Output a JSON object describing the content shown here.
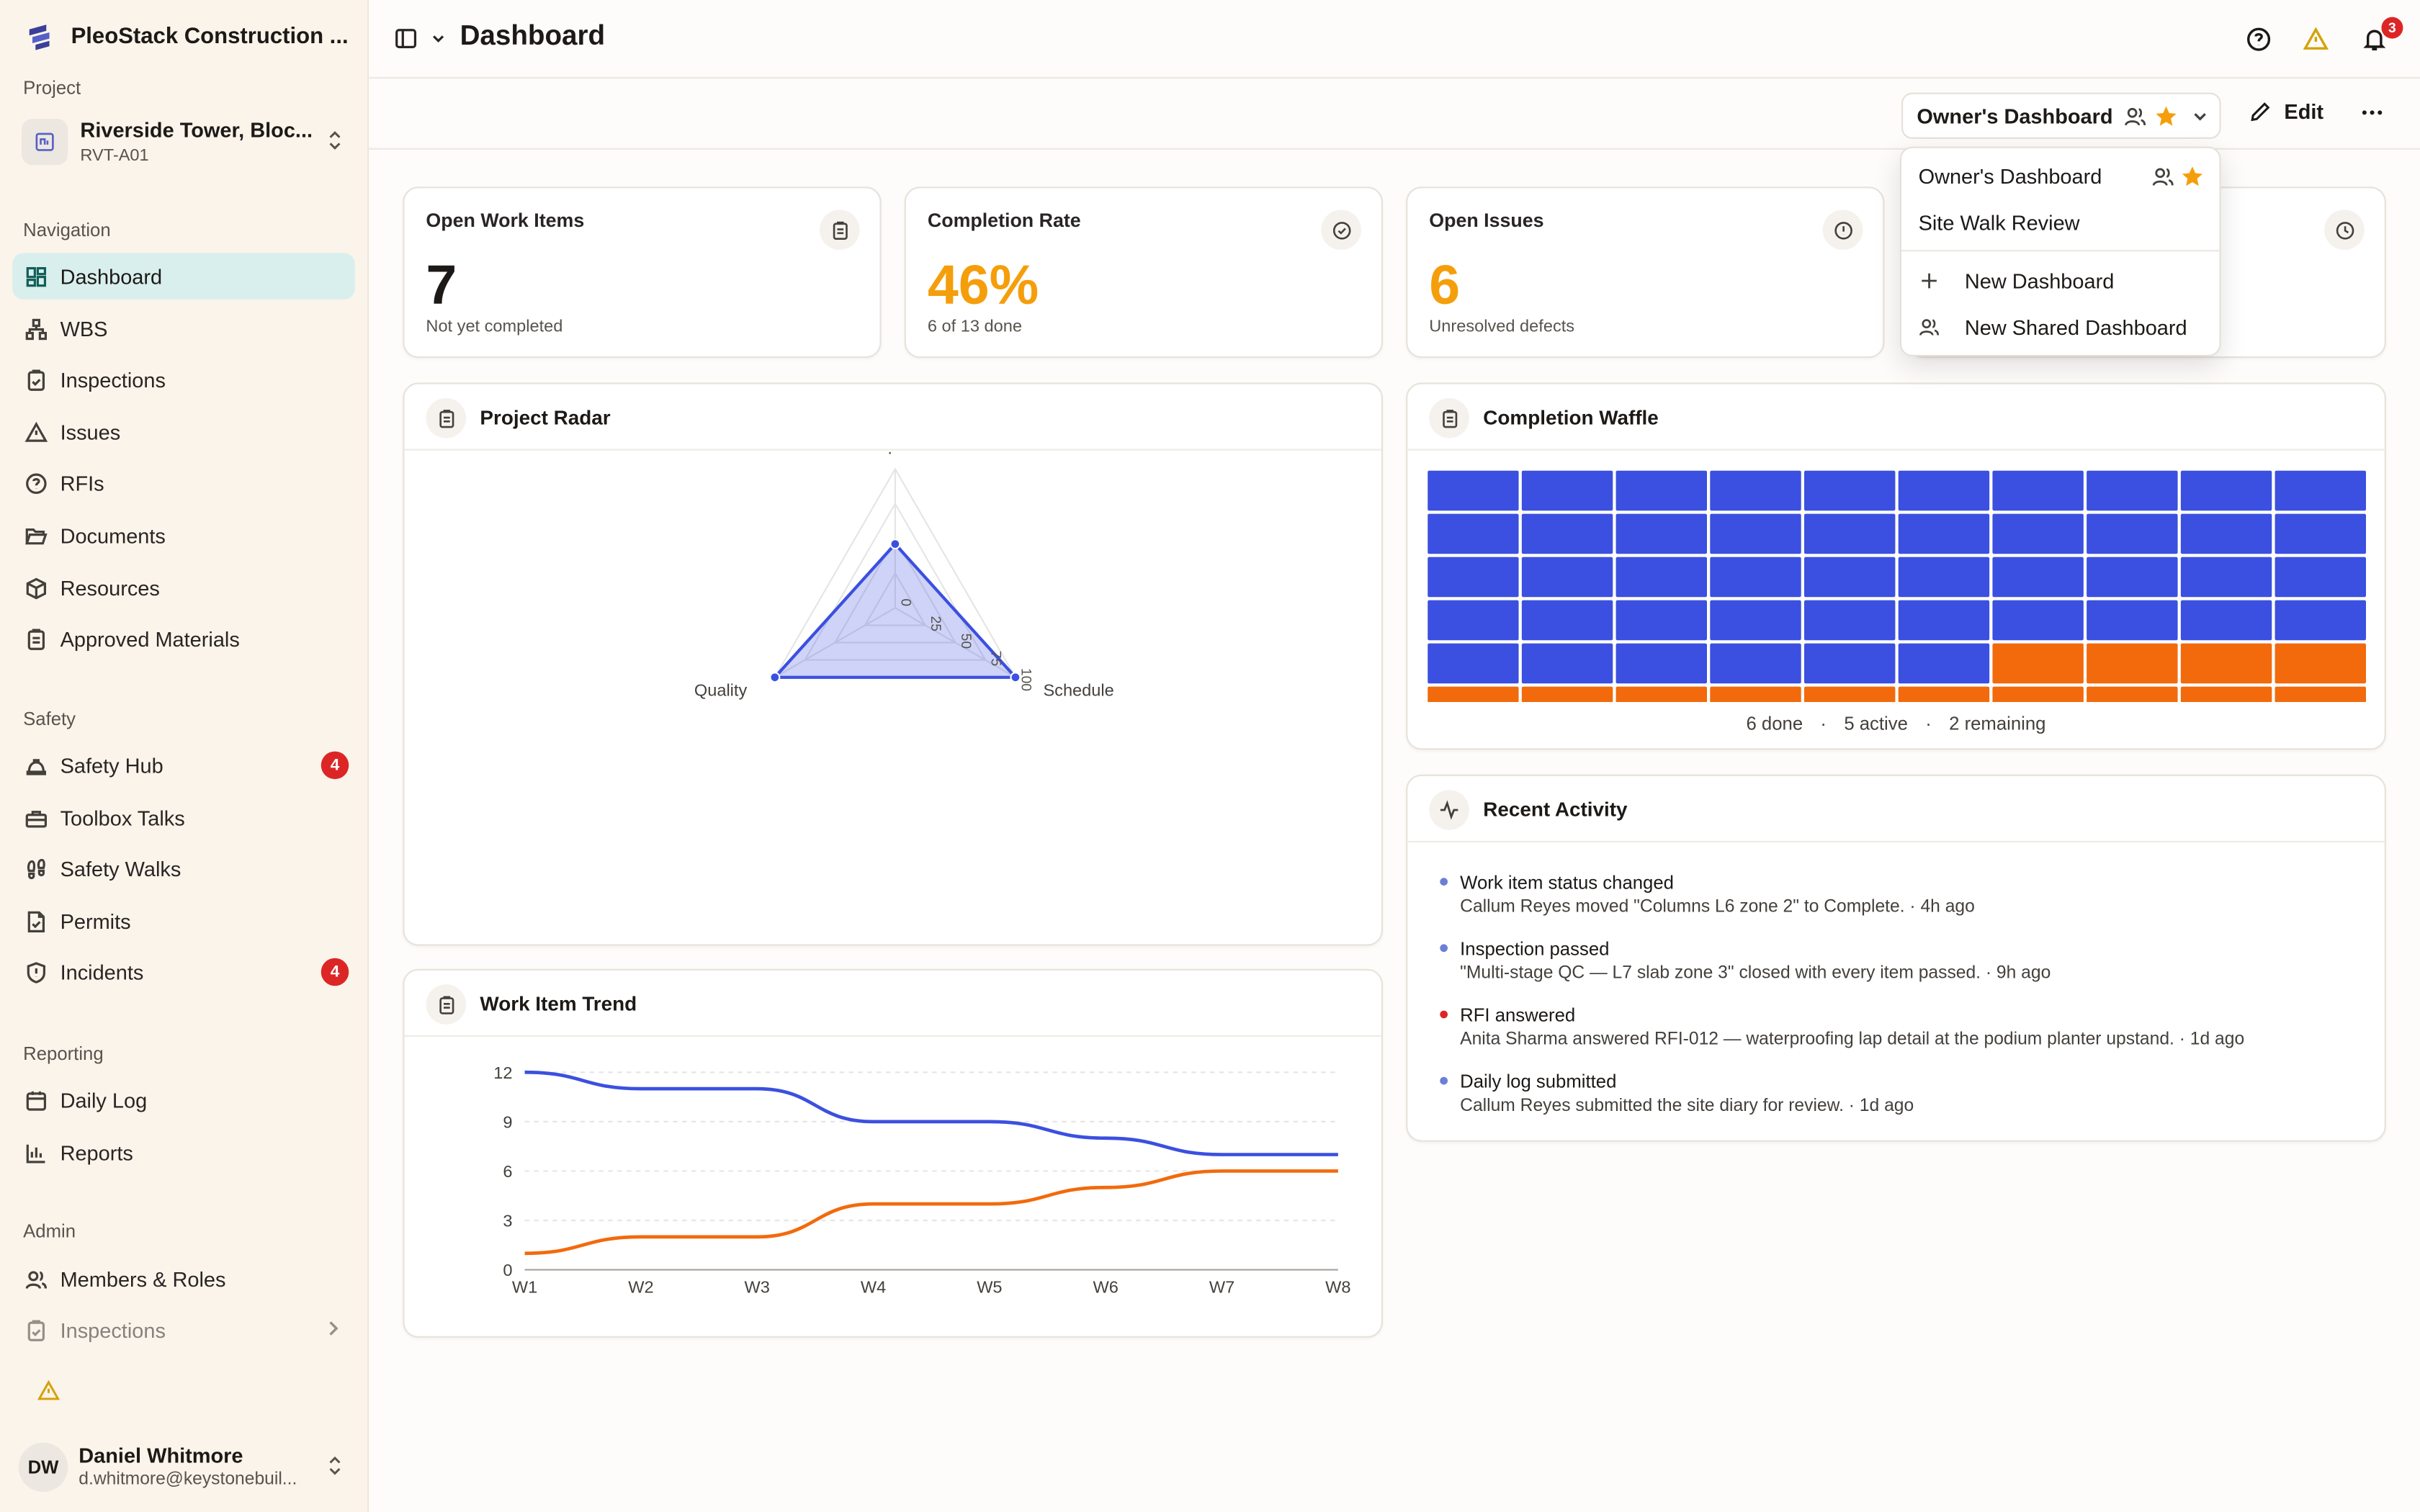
{
  "app": {
    "name": "PleoStack Construction ..."
  },
  "project": {
    "section_label": "Project",
    "name": "Riverside Tower, Bloc...",
    "code": "RVT-A01"
  },
  "sidebar": {
    "nav_label": "Navigation",
    "nav": [
      "Dashboard",
      "WBS",
      "Inspections",
      "Issues",
      "RFIs",
      "Documents",
      "Resources",
      "Approved Materials"
    ],
    "safety_label": "Safety",
    "safety": [
      {
        "label": "Safety Hub",
        "badge": "4"
      },
      {
        "label": "Toolbox Talks",
        "badge": ""
      },
      {
        "label": "Safety Walks",
        "badge": ""
      },
      {
        "label": "Permits",
        "badge": ""
      },
      {
        "label": "Incidents",
        "badge": "4"
      }
    ],
    "reporting_label": "Reporting",
    "reporting": [
      "Daily Log",
      "Reports"
    ],
    "admin_label": "Admin",
    "admin": [
      "Members & Roles",
      "Inspections"
    ]
  },
  "user": {
    "initials": "DW",
    "name": "Daniel Whitmore",
    "email": "d.whitmore@keystonebuil..."
  },
  "header": {
    "title": "Dashboard",
    "notification_count": "3"
  },
  "toolbar": {
    "dashboard_selected": "Owner's Dashboard",
    "edit_label": "Edit"
  },
  "dropdown": {
    "items": [
      "Owner's Dashboard",
      "Site Walk Review"
    ],
    "actions": [
      "New Dashboard",
      "New Shared Dashboard"
    ]
  },
  "kpis": [
    {
      "title": "Open Work Items",
      "value": "7",
      "sub": "Not yet completed",
      "color": "#1c1917"
    },
    {
      "title": "Completion Rate",
      "value": "46%",
      "sub": "6 of 13 done",
      "color": "#f59e0b"
    },
    {
      "title": "Open Issues",
      "value": "6",
      "sub": "Unresolved defects",
      "color": "#f59e0b"
    }
  ],
  "radar_card": {
    "title": "Project Radar"
  },
  "trend_card": {
    "title": "Work Item Trend"
  },
  "waffle_card": {
    "title": "Completion Waffle",
    "legend_done": "6 done",
    "legend_active": "5 active",
    "legend_remaining": "2 remaining"
  },
  "activity_card": {
    "title": "Recent Activity",
    "items": [
      {
        "title": "Work item status changed",
        "detail": "Callum Reyes moved \"Columns L6 zone 2\" to Complete. · 4h ago",
        "dot": "#6b7fd7"
      },
      {
        "title": "Inspection passed",
        "detail": "\"Multi-stage QC — L7 slab zone 3\" closed with every item passed. · 9h ago",
        "dot": "#6b7fd7"
      },
      {
        "title": "RFI answered",
        "detail": "Anita Sharma answered RFI-012 — waterproofing lap detail at the podium planter upstand. · 1d ago",
        "dot": "#dc2626"
      },
      {
        "title": "Daily log submitted",
        "detail": "Callum Reyes submitted the site diary for review. · 1d ago",
        "dot": "#6b7fd7"
      }
    ]
  },
  "colors": {
    "blue": "#3b50e0",
    "orange": "#f26a0c",
    "accent": "#f59e0b",
    "active_nav": "#d9efed"
  },
  "chart_data": [
    {
      "type": "radar",
      "axes": [
        "Completion",
        "Schedule",
        "Quality"
      ],
      "values": [
        46,
        100,
        100
      ],
      "ticks": [
        "0",
        "25",
        "50",
        "75",
        "100"
      ],
      "range": [
        0,
        100
      ]
    },
    {
      "type": "line",
      "categories": [
        "W1",
        "W2",
        "W3",
        "W4",
        "W5",
        "W6",
        "W7",
        "W8"
      ],
      "series": [
        {
          "values": [
            12,
            11,
            11,
            9,
            9,
            8,
            7,
            7
          ],
          "color": "#3b50e0"
        },
        {
          "values": [
            1,
            2,
            2,
            4,
            4,
            5,
            6,
            6
          ],
          "color": "#f26a0c"
        }
      ],
      "yticks": [
        "0",
        "3",
        "6",
        "9",
        "12"
      ],
      "ylim": [
        0,
        12
      ],
      "grid": "horizontal dashed"
    },
    {
      "type": "waffle",
      "rows_visible": 6,
      "columns": 10,
      "done_cells": 46,
      "colors": {
        "done": "#3b50e0",
        "active": "#f26a0c"
      }
    }
  ]
}
